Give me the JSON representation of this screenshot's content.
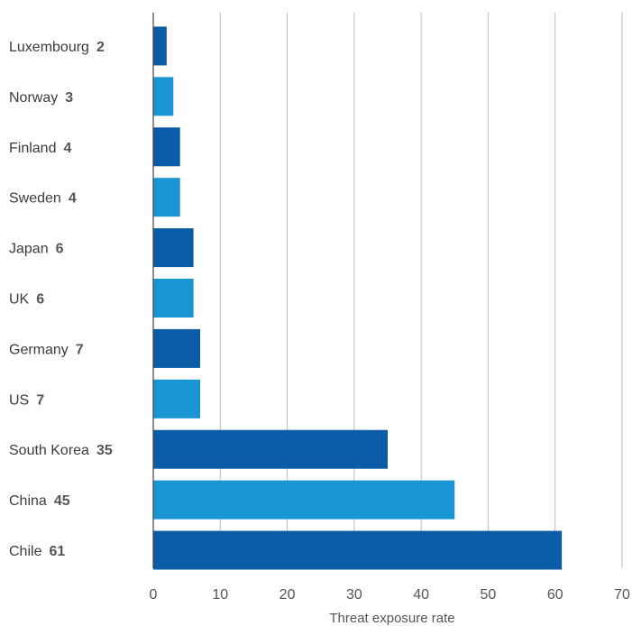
{
  "chart_data": {
    "type": "bar",
    "orientation": "horizontal",
    "categories": [
      "Luxembourg",
      "Norway",
      "Finland",
      "Sweden",
      "Japan",
      "UK",
      "Germany",
      "US",
      "South Korea",
      "China",
      "Chile"
    ],
    "values": [
      2,
      3,
      4,
      4,
      6,
      6,
      7,
      7,
      35,
      45,
      61
    ],
    "value_labels": [
      "2",
      "3",
      "4",
      "4",
      "6",
      "6",
      "7",
      "7",
      "35",
      "45",
      "61"
    ],
    "value_label_bold": [
      true,
      true,
      false,
      true,
      true,
      true,
      true,
      true,
      true,
      true,
      true
    ],
    "title": "",
    "xlabel": "Threat exposure rate",
    "ylabel": "",
    "xlim": [
      0,
      70
    ],
    "xticks": [
      0,
      10,
      20,
      30,
      40,
      50,
      60,
      70
    ],
    "xtick_labels": [
      "0",
      "10",
      "20",
      "30",
      "40",
      "50",
      "60",
      "70"
    ],
    "grid": "vertical",
    "legend": "none",
    "colors": {
      "dark": "#0b5ca6",
      "light": "#1995d4",
      "pattern": [
        "dark",
        "light",
        "dark",
        "light",
        "dark",
        "light",
        "dark",
        "light",
        "dark",
        "light",
        "dark"
      ]
    }
  }
}
